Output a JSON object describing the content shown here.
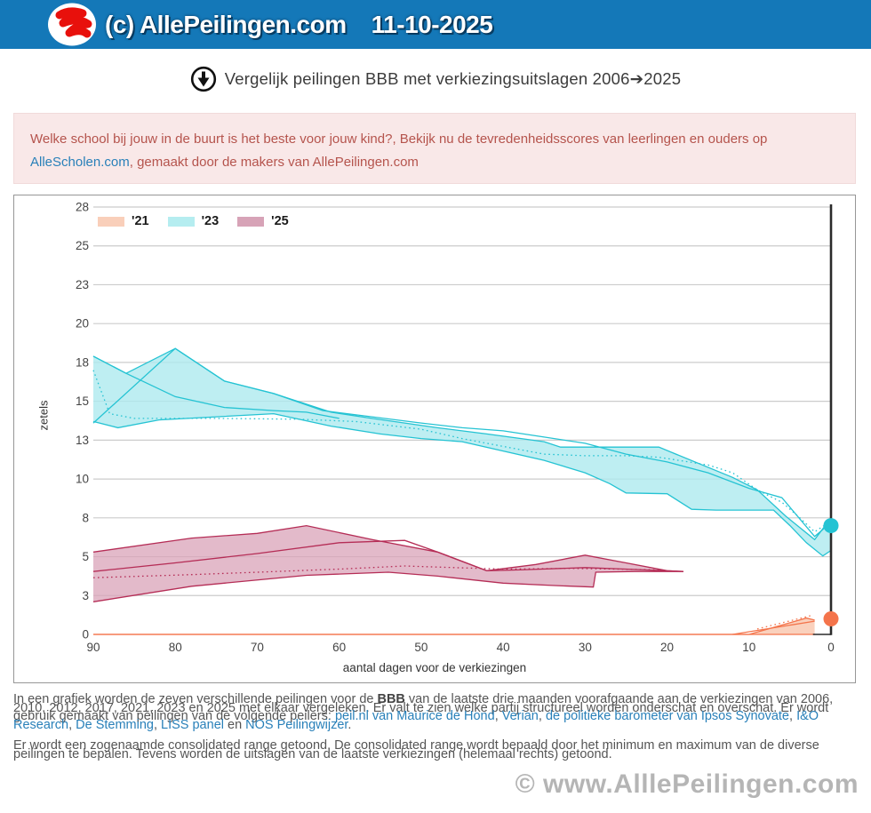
{
  "header": {
    "copyright": "(c) AllePeilingen.com",
    "date": "11-10-2025",
    "logo": "allepeilingen-logo"
  },
  "title": {
    "text": "Vergelijk peilingen BBB met verkiezingsuitslagen 2006➔2025"
  },
  "notice": {
    "line1": "Welke school bij jouw in de buurt is het beste voor jouw kind?, Bekijk nu de tevredenheidsscores van leerlingen en ouders op ",
    "link": "AlleScholen.com",
    "line2": ", gemaakt door de makers van AllePeilingen.com"
  },
  "colors": {
    "header_bg": "#1478b8",
    "notice_bg": "#f9e8e8",
    "notice_text": "#b5544d",
    "link": "#2980b9",
    "grid": "#cccccc",
    "axis": "#2b2b2b",
    "watermark": "#b5b5b5"
  },
  "chart_data": {
    "type": "area",
    "title": "Vergelijk peilingen BBB met verkiezingsuitslagen 2006➔2025",
    "xlabel": "aantal dagen voor de verkiezingen",
    "ylabel": "zetels",
    "x_reversed": true,
    "xlim": [
      90,
      0
    ],
    "ylim": [
      0,
      27.5
    ],
    "grid": true,
    "legend_position": "top-left",
    "x_ticks": [
      90,
      80,
      70,
      60,
      50,
      40,
      30,
      20,
      10,
      0
    ],
    "y_ticks": [
      {
        "v": 27.5,
        "label": "28"
      },
      {
        "v": 25,
        "label": "25"
      },
      {
        "v": 22.5,
        "label": "23"
      },
      {
        "v": 20,
        "label": "20"
      },
      {
        "v": 17.5,
        "label": "18"
      },
      {
        "v": 15,
        "label": "15"
      },
      {
        "v": 12.5,
        "label": "13"
      },
      {
        "v": 10,
        "label": "10"
      },
      {
        "v": 7.5,
        "label": "8"
      },
      {
        "v": 5,
        "label": "5"
      },
      {
        "v": 2.5,
        "label": "3"
      },
      {
        "v": 0,
        "label": "0"
      }
    ],
    "legend": [
      {
        "label": "'21",
        "color": "#f9cfba"
      },
      {
        "label": "'23",
        "color": "#b5edf0"
      },
      {
        "label": "'25",
        "color": "#d7a3b7"
      }
    ],
    "series": [
      {
        "name": "'23",
        "line_color": "#25c3d3",
        "fill_color": "#aeeaef",
        "fill_opacity": 0.8,
        "band": {
          "max": [
            [
              90,
              17.9
            ],
            [
              86,
              16.8
            ],
            [
              80,
              18.4
            ],
            [
              74,
              16.3
            ],
            [
              68,
              15.5
            ],
            [
              61,
              14.3
            ],
            [
              56,
              13.9
            ],
            [
              48,
              13.3
            ],
            [
              42,
              12.9
            ],
            [
              35,
              12.4
            ],
            [
              33,
              12.05
            ],
            [
              21,
              12.05
            ],
            [
              12,
              10.1
            ],
            [
              9,
              9.3
            ],
            [
              5.5,
              7.6
            ],
            [
              2,
              6.1
            ],
            [
              0,
              7.5
            ]
          ],
          "min": [
            [
              90,
              13.7
            ],
            [
              87,
              13.3
            ],
            [
              82,
              13.8
            ],
            [
              75,
              14.0
            ],
            [
              68,
              14.2
            ],
            [
              61,
              13.4
            ],
            [
              55,
              12.9
            ],
            [
              50,
              12.6
            ],
            [
              45,
              12.4
            ],
            [
              40,
              11.8
            ],
            [
              35,
              11.2
            ],
            [
              30,
              10.4
            ],
            [
              27,
              9.7
            ],
            [
              25,
              9.1
            ],
            [
              20,
              9.05
            ],
            [
              17,
              8.05
            ],
            [
              14,
              8.0
            ],
            [
              7,
              8.0
            ],
            [
              5,
              7.0
            ],
            [
              3,
              5.9
            ],
            [
              1,
              5.05
            ],
            [
              0,
              5.4
            ]
          ]
        },
        "lines": [
          {
            "style": "solid",
            "points": [
              [
                90,
                13.6
              ],
              [
                80,
                18.4
              ],
              [
                74,
                16.3
              ],
              [
                68,
                15.5
              ],
              [
                62,
                14.4
              ],
              [
                56,
                14.0
              ],
              [
                50,
                13.6
              ],
              [
                45,
                13.3
              ],
              [
                40,
                13.1
              ],
              [
                35,
                12.7
              ],
              [
                30,
                12.3
              ],
              [
                25,
                11.6
              ],
              [
                20,
                11.1
              ],
              [
                15,
                10.4
              ],
              [
                10,
                9.4
              ],
              [
                6,
                8.8
              ],
              [
                2,
                6.3
              ],
              [
                0,
                7.2
              ]
            ]
          },
          {
            "style": "solid",
            "points": [
              [
                90,
                17.9
              ],
              [
                86,
                16.8
              ],
              [
                80,
                15.3
              ],
              [
                74,
                14.6
              ],
              [
                68,
                14.4
              ],
              [
                64,
                14.3
              ],
              [
                60,
                13.9
              ]
            ]
          },
          {
            "style": "dotted",
            "points": [
              [
                90,
                17.0
              ],
              [
                88,
                14.2
              ],
              [
                85,
                13.9
              ],
              [
                75,
                13.9
              ],
              [
                65,
                13.85
              ],
              [
                58,
                13.7
              ],
              [
                50,
                13.2
              ],
              [
                45,
                12.6
              ],
              [
                40,
                12.1
              ],
              [
                35,
                11.6
              ],
              [
                30,
                11.5
              ],
              [
                25,
                11.5
              ],
              [
                21,
                11.4
              ],
              [
                15,
                10.9
              ],
              [
                12,
                10.4
              ],
              [
                9,
                9.3
              ],
              [
                6,
                8.5
              ],
              [
                4,
                7.6
              ],
              [
                2,
                6.6
              ],
              [
                0,
                7.3
              ]
            ]
          }
        ],
        "result": {
          "day": 0,
          "seats": 7
        }
      },
      {
        "name": "'25",
        "line_color": "#b52d56",
        "fill_color": "#d9a3b8",
        "fill_opacity": 0.75,
        "band": {
          "max": [
            [
              90,
              5.3
            ],
            [
              78,
              6.2
            ],
            [
              70,
              6.5
            ],
            [
              64,
              7.0
            ],
            [
              56,
              6.1
            ],
            [
              48,
              5.3
            ],
            [
              42,
              4.1
            ],
            [
              36,
              4.5
            ],
            [
              30,
              5.1
            ],
            [
              25,
              4.6
            ],
            [
              20,
              4.1
            ],
            [
              18,
              4.05
            ]
          ],
          "min": [
            [
              90,
              2.1
            ],
            [
              78,
              3.1
            ],
            [
              64,
              3.8
            ],
            [
              54,
              4.0
            ],
            [
              48,
              3.75
            ],
            [
              40,
              3.3
            ],
            [
              34,
              3.15
            ],
            [
              29,
              3.05
            ],
            [
              28.7,
              4.0
            ],
            [
              24,
              4.05
            ],
            [
              18,
              4.05
            ]
          ]
        },
        "lines": [
          {
            "style": "solid",
            "points": [
              [
                90,
                4.05
              ],
              [
                80,
                4.6
              ],
              [
                70,
                5.2
              ],
              [
                60,
                5.9
              ],
              [
                52,
                6.05
              ],
              [
                48,
                5.3
              ],
              [
                42,
                4.1
              ],
              [
                38,
                4.15
              ],
              [
                30,
                4.3
              ],
              [
                25,
                4.2
              ],
              [
                18,
                4.05
              ]
            ]
          },
          {
            "style": "dotted",
            "points": [
              [
                90,
                3.65
              ],
              [
                78,
                3.85
              ],
              [
                70,
                4.0
              ],
              [
                60,
                4.2
              ],
              [
                52,
                4.4
              ],
              [
                46,
                4.3
              ],
              [
                40,
                4.2
              ],
              [
                32,
                4.25
              ],
              [
                26,
                4.2
              ],
              [
                21,
                4.15
              ]
            ]
          }
        ]
      },
      {
        "name": "'21",
        "line_color": "#f4744b",
        "fill_color": "#f9c6ad",
        "fill_opacity": 0.8,
        "band": {
          "max": [
            [
              90,
              0
            ],
            [
              10,
              0
            ],
            [
              3,
              1.05
            ],
            [
              2,
              0.92
            ]
          ],
          "min": [
            [
              90,
              0
            ],
            [
              2,
              0
            ]
          ]
        },
        "lines": [
          {
            "style": "solid",
            "points": [
              [
                12,
                0
              ],
              [
                2,
                0.85
              ]
            ]
          },
          {
            "style": "dotted",
            "points": [
              [
                9,
                0.35
              ],
              [
                2.5,
                1.2
              ]
            ]
          }
        ],
        "result": {
          "day": 0,
          "seats": 1
        }
      }
    ]
  },
  "description": {
    "p1_intro": "In een grafiek worden de zeven verschillende peilingen voor de ",
    "p1_party": "BBB",
    "p1_mid": " van de laatste drie maanden voorafgaande aan de verkiezingen van 2006, 2010, 2012, 2017, 2021, 2023 en 2025 met elkaar vergeleken. Er valt te zien welke partij structureel worden onderschat en overschat. Er wordt gebruik gemaakt van peilingen van de volgende peilers: ",
    "pollsters": [
      "peil.nl van Maurice de Hond",
      "Verian",
      "de politieke barometer van Ipsos Synovate",
      "I&O Research",
      "De Stemming",
      "LISS panel",
      "NOS Peilingwijzer"
    ],
    "sep": ", ",
    "sep_last": " en ",
    "p1_end": ".",
    "p2": "Er wordt een zogenaamde consolidated range getoond. De consolidated range wordt bepaald door het minimum en maximum van de diverse peilingen te bepalen. Tevens worden de uitslagen van de laatste verkiezingen (helemaal rechts) getoond."
  },
  "watermark": "© www.AlllePeilingen.com"
}
